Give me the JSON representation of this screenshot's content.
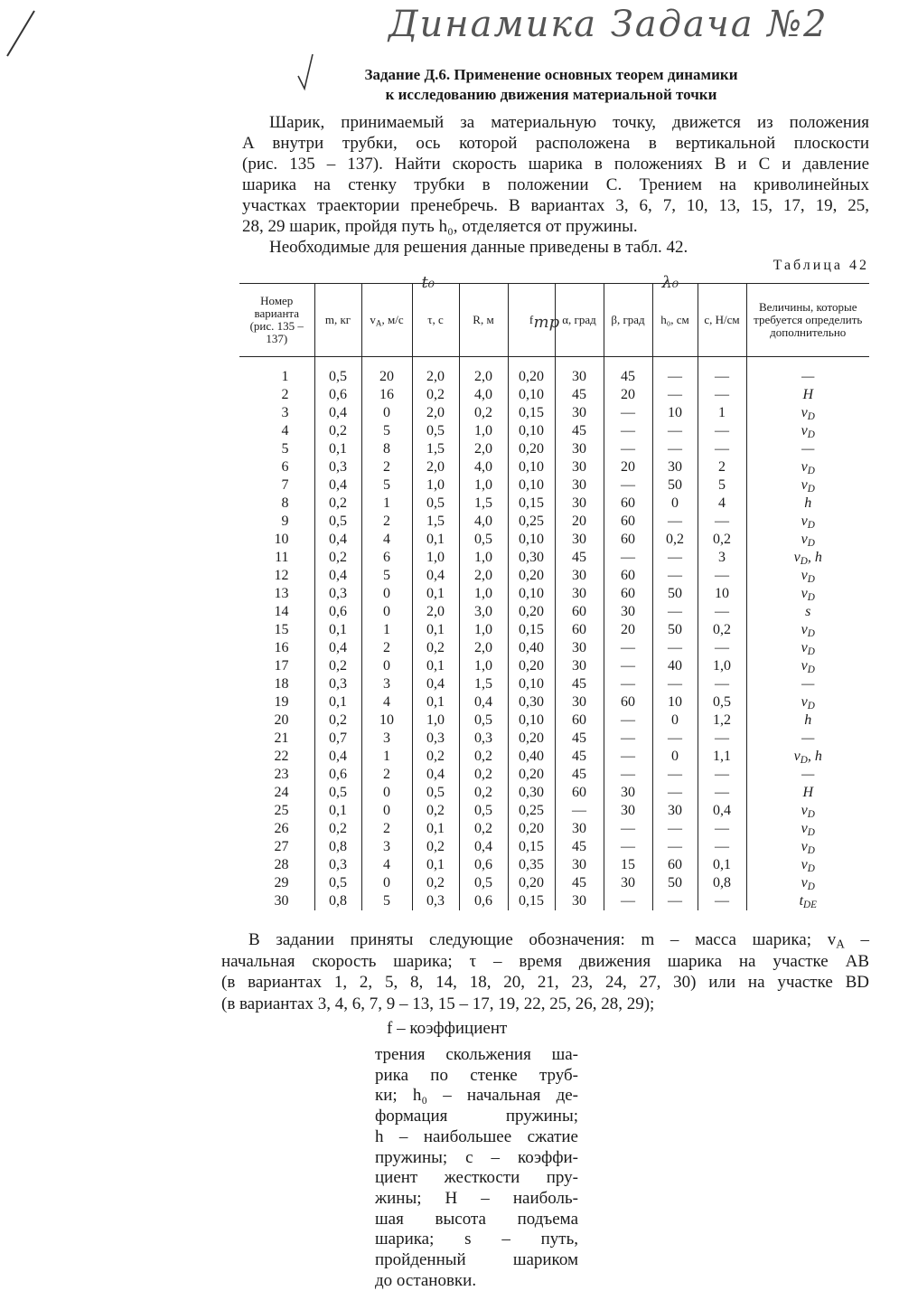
{
  "handwritten": {
    "header": "Динамика Задача №2"
  },
  "title": {
    "lines": [
      "Задание Д.6. Применение основных теорем динамики",
      "к исследованию движения материальной точки"
    ]
  },
  "intro": {
    "lines": [
      "Шарик, принимаемый за материальную точку, движется из положения",
      "A внутри трубки, ось которой расположена в вертикальной плоскости",
      "(рис. 135 – 137). Найти скорость шарика в положениях B и C и давление",
      "шарика на стенку трубки в положении C. Трением на криволинейных",
      "участках траектории пренебречь. В вариантах 3, 6, 7, 10, 13, 15, 17, 19, 25,",
      "28, 29 шарик, пройдя путь h₀, отделяется от пружины.",
      "Необходимые для решения данные приведены в табл. 42."
    ]
  },
  "table": {
    "caption": "Таблица 42",
    "headers": [
      {
        "text": "Номер варианта (рис. 135 – 137)"
      },
      {
        "text": "m, кг"
      },
      {
        "text": "vA, м/с"
      },
      {
        "text": "τ, с",
        "note": "t₀"
      },
      {
        "text": "R, м"
      },
      {
        "text": "f",
        "note": "тр"
      },
      {
        "text": "α, град"
      },
      {
        "text": "β, град"
      },
      {
        "text": "h₀, см",
        "note": "λ₀"
      },
      {
        "text": "c, Н/см"
      },
      {
        "text": "Величины, которые требуется определить дополнительно"
      }
    ],
    "rows": [
      [
        "1",
        "0,5",
        "20",
        "2,0",
        "2,0",
        "0,20",
        "30",
        "45",
        "—",
        "—",
        "—"
      ],
      [
        "2",
        "0,6",
        "16",
        "0,2",
        "4,0",
        "0,10",
        "45",
        "20",
        "—",
        "—",
        "H"
      ],
      [
        "3",
        "0,4",
        "0",
        "2,0",
        "0,2",
        "0,15",
        "30",
        "—",
        "10",
        "1",
        "vD"
      ],
      [
        "4",
        "0,2",
        "5",
        "0,5",
        "1,0",
        "0,10",
        "45",
        "—",
        "—",
        "—",
        "vD"
      ],
      [
        "5",
        "0,1",
        "8",
        "1,5",
        "2,0",
        "0,20",
        "30",
        "—",
        "—",
        "—",
        "—"
      ],
      [
        "6",
        "0,3",
        "2",
        "2,0",
        "4,0",
        "0,10",
        "30",
        "20",
        "30",
        "2",
        "vD"
      ],
      [
        "7",
        "0,4",
        "5",
        "1,0",
        "1,0",
        "0,10",
        "30",
        "—",
        "50",
        "5",
        "vD"
      ],
      [
        "8",
        "0,2",
        "1",
        "0,5",
        "1,5",
        "0,15",
        "30",
        "60",
        "0",
        "4",
        "h"
      ],
      [
        "9",
        "0,5",
        "2",
        "1,5",
        "4,0",
        "0,25",
        "20",
        "60",
        "—",
        "—",
        "vD"
      ],
      [
        "10",
        "0,4",
        "4",
        "0,1",
        "0,5",
        "0,10",
        "30",
        "60",
        "0,2",
        "0,2",
        "vD"
      ],
      [
        "11",
        "0,2",
        "6",
        "1,0",
        "1,0",
        "0,30",
        "45",
        "—",
        "—",
        "3",
        "vD, h"
      ],
      [
        "12",
        "0,4",
        "5",
        "0,4",
        "2,0",
        "0,20",
        "30",
        "60",
        "—",
        "—",
        "vD"
      ],
      [
        "13",
        "0,3",
        "0",
        "0,1",
        "1,0",
        "0,10",
        "30",
        "60",
        "50",
        "10",
        "vD"
      ],
      [
        "14",
        "0,6",
        "0",
        "2,0",
        "3,0",
        "0,20",
        "60",
        "30",
        "—",
        "—",
        "s"
      ],
      [
        "15",
        "0,1",
        "1",
        "0,1",
        "1,0",
        "0,15",
        "60",
        "20",
        "50",
        "0,2",
        "vD"
      ],
      [
        "16",
        "0,4",
        "2",
        "0,2",
        "2,0",
        "0,40",
        "30",
        "—",
        "—",
        "—",
        "vD"
      ],
      [
        "17",
        "0,2",
        "0",
        "0,1",
        "1,0",
        "0,20",
        "30",
        "—",
        "40",
        "1,0",
        "vD"
      ],
      [
        "18",
        "0,3",
        "3",
        "0,4",
        "1,5",
        "0,10",
        "45",
        "—",
        "—",
        "—",
        "—"
      ],
      [
        "19",
        "0,1",
        "4",
        "0,1",
        "0,4",
        "0,30",
        "30",
        "60",
        "10",
        "0,5",
        "vD"
      ],
      [
        "20",
        "0,2",
        "10",
        "1,0",
        "0,5",
        "0,10",
        "60",
        "—",
        "0",
        "1,2",
        "h"
      ],
      [
        "21",
        "0,7",
        "3",
        "0,3",
        "0,3",
        "0,20",
        "45",
        "—",
        "—",
        "—",
        "—"
      ],
      [
        "22",
        "0,4",
        "1",
        "0,2",
        "0,2",
        "0,40",
        "45",
        "—",
        "0",
        "1,1",
        "vD, h"
      ],
      [
        "23",
        "0,6",
        "2",
        "0,4",
        "0,2",
        "0,20",
        "45",
        "—",
        "—",
        "—",
        "—"
      ],
      [
        "24",
        "0,5",
        "0",
        "0,5",
        "0,2",
        "0,30",
        "60",
        "30",
        "—",
        "—",
        "H"
      ],
      [
        "25",
        "0,1",
        "0",
        "0,2",
        "0,5",
        "0,25",
        "—",
        "30",
        "30",
        "0,4",
        "vD"
      ],
      [
        "26",
        "0,2",
        "2",
        "0,1",
        "0,2",
        "0,20",
        "30",
        "—",
        "—",
        "—",
        "vD"
      ],
      [
        "27",
        "0,8",
        "3",
        "0,2",
        "0,4",
        "0,15",
        "45",
        "—",
        "—",
        "—",
        "vD"
      ],
      [
        "28",
        "0,3",
        "4",
        "0,1",
        "0,6",
        "0,35",
        "30",
        "15",
        "60",
        "0,1",
        "vD"
      ],
      [
        "29",
        "0,5",
        "0",
        "0,2",
        "0,5",
        "0,20",
        "45",
        "30",
        "50",
        "0,8",
        "vD"
      ],
      [
        "30",
        "0,8",
        "5",
        "0,3",
        "0,6",
        "0,15",
        "30",
        "—",
        "—",
        "—",
        "tDE"
      ]
    ]
  },
  "notation": {
    "lines": [
      "В задании приняты следующие обозначения: m – масса шарика; vA –",
      "начальная скорость шарика; τ – время движения шарика на участке AB",
      "(в вариантах 1, 2, 5, 8, 14, 18, 20, 21, 23, 24, 27, 30) или на участке BD",
      "(в вариантах 3, 4, 6, 7, 9 – 13, 15 – 17, 19, 22, 25, 26, 28, 29);"
    ]
  },
  "notation_column": {
    "first": "f – коэффициент",
    "lines": [
      "трения скольжения ша-",
      "рика по стенке труб-",
      "ки; h₀ – начальная де-",
      "формация пружины;",
      "h – наибольшее сжатие",
      "пружины; c – коэффи-",
      "циент жесткости пру-",
      "жины; H – наиболь-",
      "шая высота подъема",
      "шарика; s – путь,",
      "пройденный шариком",
      "до остановки."
    ]
  }
}
